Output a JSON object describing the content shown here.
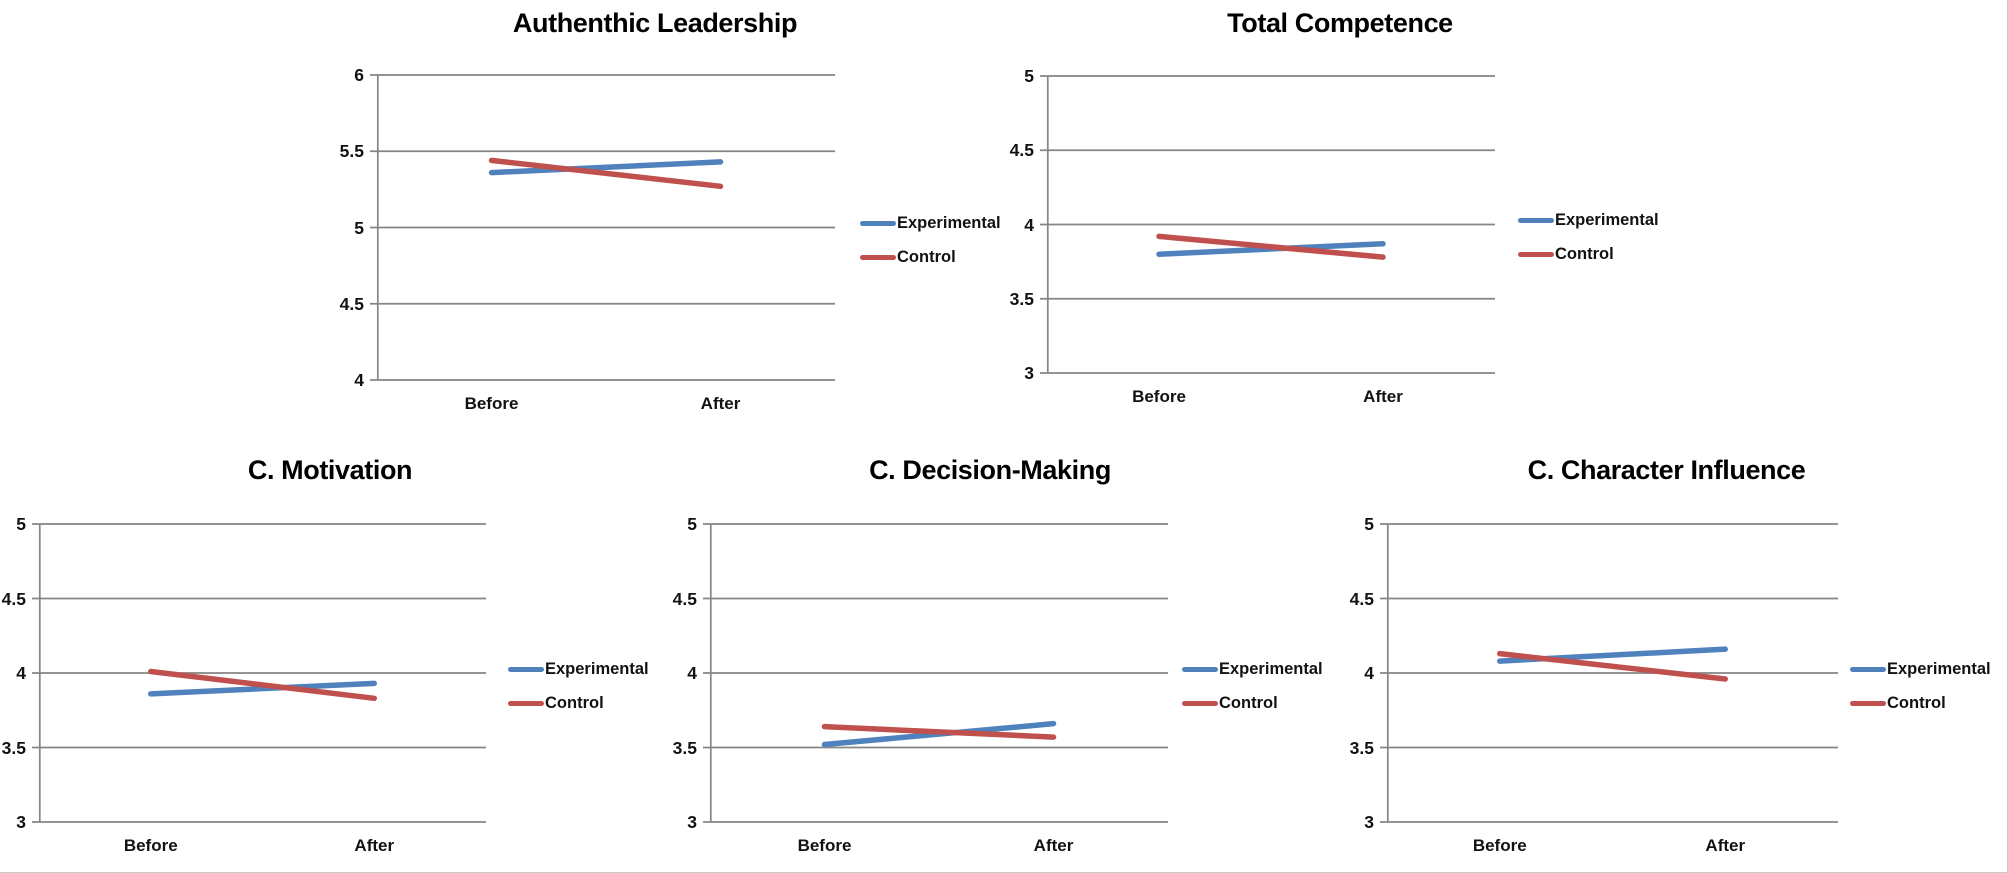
{
  "figure": {
    "series_names": [
      "Experimental",
      "Control"
    ],
    "colors": {
      "experimental": "#4F81BD",
      "control": "#C0504D",
      "gridline": "#858585",
      "tick_text": "#121212",
      "title_text": "#000000",
      "background": "#FFFFFF"
    }
  },
  "chart_data": [
    {
      "type": "line",
      "title": "Authenthic Leadership",
      "categories": [
        "Before",
        "After"
      ],
      "series": [
        {
          "name": "Experimental",
          "color": "#4F81BD",
          "values": [
            5.36,
            5.43
          ]
        },
        {
          "name": "Control",
          "color": "#C0504D",
          "values": [
            5.44,
            5.27
          ]
        }
      ],
      "ylim": [
        4,
        6
      ],
      "yticks": [
        4,
        4.5,
        5,
        5.5,
        6
      ],
      "grid": true,
      "legend_position": "right"
    },
    {
      "type": "line",
      "title": "Total Competence",
      "categories": [
        "Before",
        "After"
      ],
      "series": [
        {
          "name": "Experimental",
          "color": "#4F81BD",
          "values": [
            3.8,
            3.87
          ]
        },
        {
          "name": "Control",
          "color": "#C0504D",
          "values": [
            3.92,
            3.78
          ]
        }
      ],
      "ylim": [
        3,
        5
      ],
      "yticks": [
        3,
        3.5,
        4,
        4.5,
        5
      ],
      "grid": true,
      "legend_position": "right"
    },
    {
      "type": "line",
      "title": "C. Motivation",
      "categories": [
        "Before",
        "After"
      ],
      "series": [
        {
          "name": "Experimental",
          "color": "#4F81BD",
          "values": [
            3.86,
            3.93
          ]
        },
        {
          "name": "Control",
          "color": "#C0504D",
          "values": [
            4.01,
            3.83
          ]
        }
      ],
      "ylim": [
        3,
        5
      ],
      "yticks": [
        3,
        3.5,
        4,
        4.5,
        5
      ],
      "grid": true,
      "legend_position": "right"
    },
    {
      "type": "line",
      "title": "C. Decision-Making",
      "categories": [
        "Before",
        "After"
      ],
      "series": [
        {
          "name": "Experimental",
          "color": "#4F81BD",
          "values": [
            3.52,
            3.66
          ]
        },
        {
          "name": "Control",
          "color": "#C0504D",
          "values": [
            3.64,
            3.57
          ]
        }
      ],
      "ylim": [
        3,
        5
      ],
      "yticks": [
        3,
        3.5,
        4,
        4.5,
        5
      ],
      "grid": true,
      "legend_position": "right"
    },
    {
      "type": "line",
      "title": "C. Character Influence",
      "categories": [
        "Before",
        "After"
      ],
      "series": [
        {
          "name": "Experimental",
          "color": "#4F81BD",
          "values": [
            4.08,
            4.16
          ]
        },
        {
          "name": "Control",
          "color": "#C0504D",
          "values": [
            4.13,
            3.96
          ]
        }
      ],
      "ylim": [
        3,
        5
      ],
      "yticks": [
        3,
        3.5,
        4,
        4.5,
        5
      ],
      "grid": true,
      "legend_position": "right"
    }
  ]
}
